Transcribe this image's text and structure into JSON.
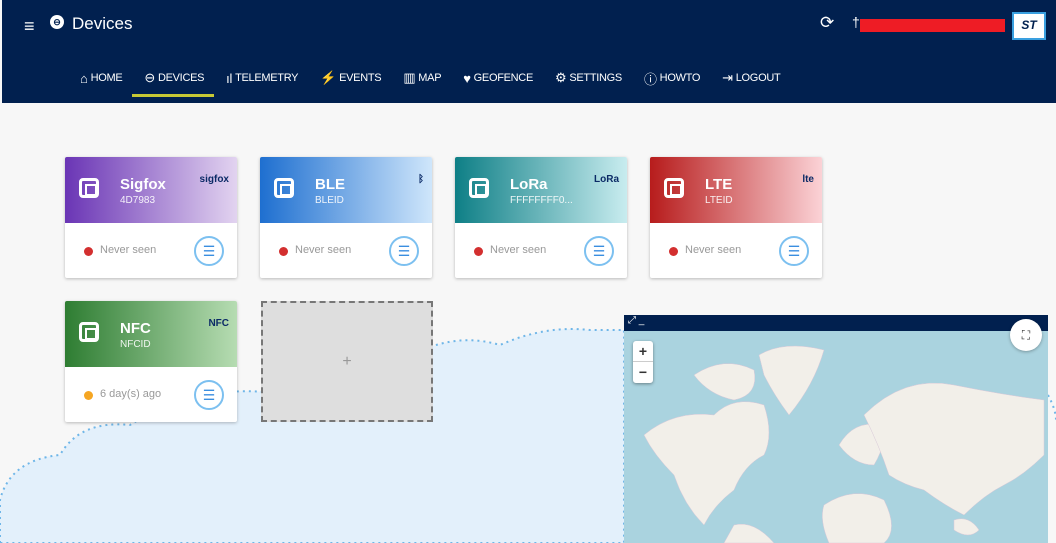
{
  "header": {
    "title": "Devices",
    "user_redacted": true,
    "logo": "ST"
  },
  "nav": [
    {
      "label": "HOME",
      "icon": "home-icon",
      "glyph": "⌂"
    },
    {
      "label": "DEVICES",
      "icon": "devices-icon",
      "glyph": "⊖",
      "active": true
    },
    {
      "label": "TELEMETRY",
      "icon": "bar-chart-icon",
      "glyph": "ıl"
    },
    {
      "label": "EVENTS",
      "icon": "bolt-icon",
      "glyph": "⚡"
    },
    {
      "label": "MAP",
      "icon": "map-icon",
      "glyph": "▥"
    },
    {
      "label": "GEOFENCE",
      "icon": "pin-icon",
      "glyph": "♥"
    },
    {
      "label": "SETTINGS",
      "icon": "gear-icon",
      "glyph": "⚙"
    },
    {
      "label": "HOWTO",
      "icon": "info-icon",
      "glyph": "ⓘ"
    },
    {
      "label": "LOGOUT",
      "icon": "logout-icon",
      "glyph": "⇥"
    }
  ],
  "devices": [
    {
      "name": "Sigfox",
      "id": "4D7983",
      "tech_logo": "sigfox",
      "status": "Never seen",
      "status_color": "#d32f2f",
      "gradient": [
        "#6a35b5",
        "#e2d3f0"
      ]
    },
    {
      "name": "BLE",
      "id": "BLEID",
      "tech_logo": "ᛒ",
      "status": "Never seen",
      "status_color": "#d32f2f",
      "gradient": [
        "#1e6fd0",
        "#cfe6fb"
      ]
    },
    {
      "name": "LoRa",
      "id": "FFFFFFFF0...",
      "tech_logo": "LoRa",
      "status": "Never seen",
      "status_color": "#d32f2f",
      "gradient": [
        "#0e7f86",
        "#c8ecef"
      ]
    },
    {
      "name": "LTE",
      "id": "LTEID",
      "tech_logo": "lte",
      "status": "Never seen",
      "status_color": "#d32f2f",
      "gradient": [
        "#b71c1c",
        "#fbd2d6"
      ]
    },
    {
      "name": "NFC",
      "id": "NFCID",
      "tech_logo": "NFC",
      "status": "6 day(s) ago",
      "status_color": "#f5a623",
      "gradient": [
        "#2e7d32",
        "#b6dcb2"
      ]
    }
  ],
  "add_card": {
    "label": "+"
  },
  "map": {
    "zoom_in": "+",
    "zoom_out": "−",
    "expand": "⤢ _"
  }
}
